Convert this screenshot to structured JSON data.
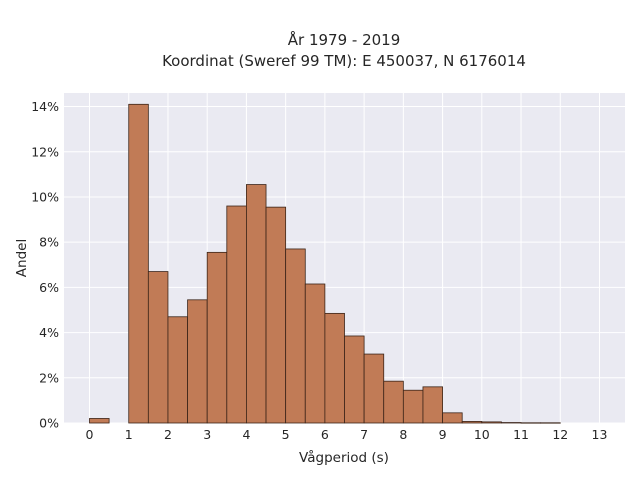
{
  "chart_data": {
    "type": "bar",
    "title": [
      "År 1979 - 2019",
      "Koordinat (Sweref 99 TM): E 450037, N 6176014"
    ],
    "xlabel": "Vågperiod (s)",
    "ylabel": "Andel",
    "xlim": [
      -0.65,
      13.65
    ],
    "ylim": [
      0,
      14.6
    ],
    "xticks": [
      0,
      1,
      2,
      3,
      4,
      5,
      6,
      7,
      8,
      9,
      10,
      11,
      12,
      13
    ],
    "yticks": [
      0,
      2,
      4,
      6,
      8,
      10,
      12,
      14
    ],
    "ytick_labels": [
      "0%",
      "2%",
      "4%",
      "6%",
      "8%",
      "10%",
      "12%",
      "14%"
    ],
    "bin_width": 0.5,
    "bins": [
      {
        "start": 0.0,
        "value": 0.2
      },
      {
        "start": 0.5,
        "value": 0.0
      },
      {
        "start": 1.0,
        "value": 14.1
      },
      {
        "start": 1.5,
        "value": 6.7
      },
      {
        "start": 2.0,
        "value": 4.7
      },
      {
        "start": 2.5,
        "value": 5.45
      },
      {
        "start": 3.0,
        "value": 7.55
      },
      {
        "start": 3.5,
        "value": 9.6
      },
      {
        "start": 4.0,
        "value": 10.55
      },
      {
        "start": 4.5,
        "value": 9.55
      },
      {
        "start": 5.0,
        "value": 7.7
      },
      {
        "start": 5.5,
        "value": 6.15
      },
      {
        "start": 6.0,
        "value": 4.85
      },
      {
        "start": 6.5,
        "value": 3.85
      },
      {
        "start": 7.0,
        "value": 3.05
      },
      {
        "start": 7.5,
        "value": 1.85
      },
      {
        "start": 8.0,
        "value": 1.45
      },
      {
        "start": 8.5,
        "value": 1.6
      },
      {
        "start": 9.0,
        "value": 0.45
      },
      {
        "start": 9.5,
        "value": 0.07
      },
      {
        "start": 10.0,
        "value": 0.05
      },
      {
        "start": 10.5,
        "value": 0.02
      },
      {
        "start": 11.0,
        "value": 0.01
      },
      {
        "start": 11.5,
        "value": 0.01
      }
    ],
    "grid": true,
    "colors": {
      "bar_fill": "#c17b56",
      "bar_edge": "#3b2418",
      "plot_background": "#eaeaf2",
      "grid": "#ffffff"
    }
  }
}
